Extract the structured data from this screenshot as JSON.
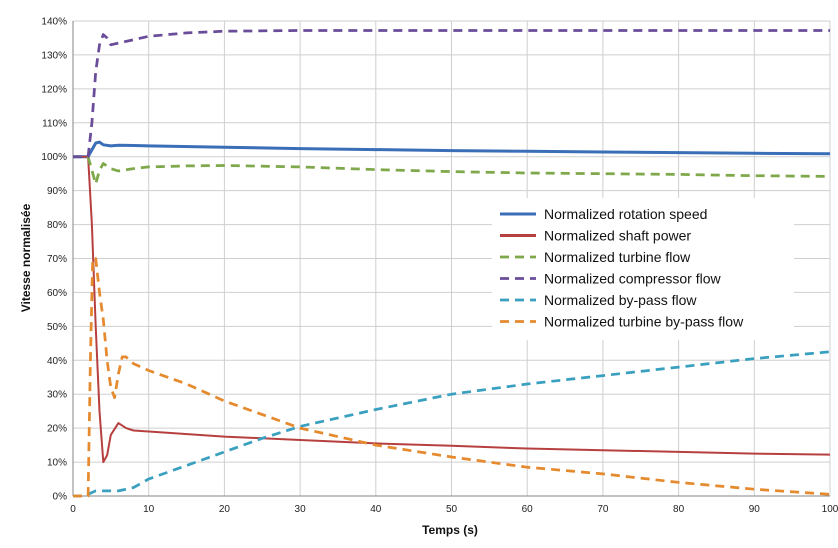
{
  "chart_data": {
    "type": "line",
    "title": "",
    "xlabel": "Temps (s)",
    "ylabel": "Vitesse normalisée",
    "xlim": [
      0,
      100
    ],
    "ylim": [
      0,
      140
    ],
    "x_ticks": [
      0,
      10,
      20,
      30,
      40,
      50,
      60,
      70,
      80,
      90,
      100
    ],
    "y_ticks": [
      0,
      10,
      20,
      30,
      40,
      50,
      60,
      70,
      80,
      90,
      100,
      110,
      120,
      130,
      140
    ],
    "y_tick_labels": [
      "0%",
      "10%",
      "20%",
      "30%",
      "40%",
      "50%",
      "60%",
      "70%",
      "80%",
      "90%",
      "100%",
      "110%",
      "120%",
      "130%",
      "140%"
    ],
    "grid": "horizontal and vertical",
    "legend_position": "center-right",
    "series": [
      {
        "name": "Normalized rotation speed",
        "color": "#3a6fb7",
        "style": "solid",
        "x": [
          0,
          2,
          2.5,
          3,
          3.5,
          4,
          5,
          6,
          8,
          10,
          20,
          30,
          40,
          50,
          60,
          70,
          80,
          90,
          100
        ],
        "y": [
          100,
          100,
          102,
          104,
          104.3,
          103.5,
          103.2,
          103.4,
          103.3,
          103.2,
          102.8,
          102.4,
          102.1,
          101.8,
          101.6,
          101.4,
          101.2,
          101.0,
          100.9
        ]
      },
      {
        "name": "Normalized shaft power",
        "color": "#b6403f",
        "style": "solid",
        "x": [
          0,
          2,
          2.5,
          3,
          3.5,
          4,
          4.5,
          5,
          6,
          7,
          8,
          10,
          20,
          30,
          40,
          50,
          60,
          70,
          80,
          90,
          100
        ],
        "y": [
          100,
          100,
          80,
          50,
          25,
          10,
          12,
          18,
          21.5,
          20,
          19.3,
          19,
          17.5,
          16.5,
          15.5,
          14.8,
          14,
          13.5,
          13,
          12.5,
          12.2
        ]
      },
      {
        "name": "Normalized turbine flow",
        "color": "#7ea84a",
        "style": "dashed",
        "x": [
          0,
          2,
          2.5,
          3,
          3.5,
          4,
          5,
          6,
          8,
          10,
          15,
          20,
          30,
          40,
          50,
          60,
          70,
          80,
          90,
          100
        ],
        "y": [
          100,
          100,
          96,
          92,
          96,
          98,
          96.5,
          95.8,
          96.5,
          97,
          97.3,
          97.4,
          97,
          96.2,
          95.6,
          95.2,
          95,
          94.8,
          94.4,
          94.2
        ]
      },
      {
        "name": "Normalized compressor flow",
        "color": "#6a4d9a",
        "style": "dashed",
        "x": [
          0,
          2,
          2.5,
          3,
          3.5,
          4,
          4.5,
          5,
          6,
          8,
          10,
          15,
          20,
          30,
          40,
          50,
          60,
          70,
          80,
          90,
          100
        ],
        "y": [
          100,
          100,
          110,
          125,
          133,
          136,
          135,
          133,
          133.5,
          134.5,
          135.5,
          136.5,
          137,
          137.2,
          137.2,
          137.2,
          137.2,
          137.2,
          137.2,
          137.2,
          137.2
        ]
      },
      {
        "name": "Normalized by-pass flow",
        "color": "#3aa0bf",
        "style": "dashed",
        "x": [
          0,
          1,
          2,
          3,
          4,
          5,
          6,
          8,
          10,
          15,
          20,
          25,
          30,
          40,
          50,
          60,
          70,
          80,
          90,
          100
        ],
        "y": [
          0,
          0,
          0.5,
          1.5,
          1.5,
          1.5,
          1.5,
          2.5,
          5,
          9,
          13,
          17,
          20.5,
          25.5,
          30,
          33,
          35.5,
          38,
          40.5,
          42.5
        ]
      },
      {
        "name": "Normalized turbine by-pass flow",
        "color": "#e58a2e",
        "style": "dashed",
        "x": [
          0,
          2,
          2.3,
          2.6,
          3,
          3.5,
          4,
          4.5,
          5,
          5.5,
          6,
          6.5,
          7,
          8,
          10,
          15,
          20,
          30,
          40,
          50,
          60,
          70,
          80,
          90,
          100
        ],
        "y": [
          0,
          0,
          40,
          70,
          70,
          60,
          52,
          40,
          32,
          29,
          36,
          41,
          41,
          39,
          37,
          33,
          28,
          20,
          15,
          11.5,
          8.5,
          6.5,
          4,
          2,
          0.5
        ]
      }
    ]
  }
}
